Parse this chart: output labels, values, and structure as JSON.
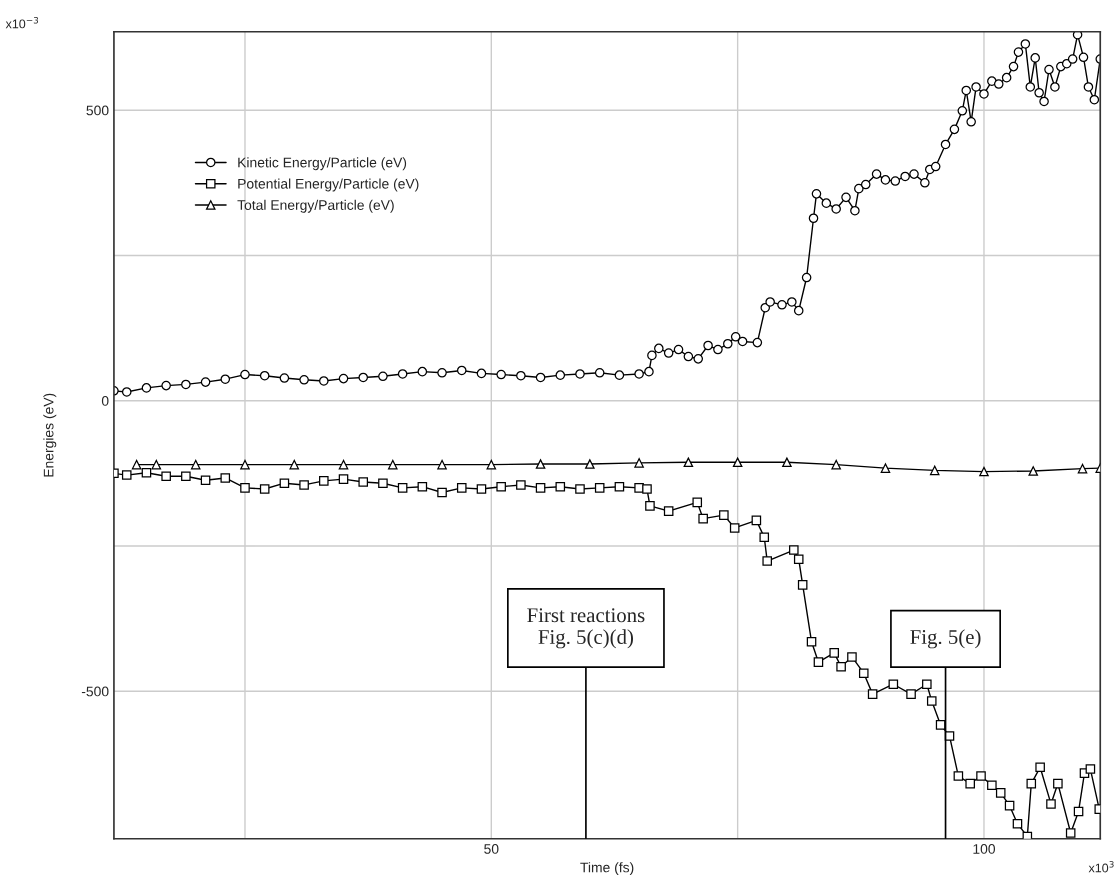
{
  "chart_data": {
    "type": "line",
    "xlabel": "Time (fs)",
    "ylabel": "Energies (eV)",
    "xlim": [
      11.7,
      111.8
    ],
    "xticks": [
      {
        "value": 25,
        "label": null
      },
      50,
      {
        "value": 75,
        "label": null
      },
      100
    ],
    "ylim": [
      -754,
      635
    ],
    "yticks": [
      -500,
      {
        "value": -250,
        "label": null
      },
      0,
      {
        "value": 250,
        "label": null
      },
      500
    ],
    "grid": true,
    "legend": "top left",
    "line_style": "solid",
    "series": [
      {
        "name": "Kinetic Energy/Particle (eV)",
        "color": "#000000",
        "marker": "circle",
        "x": [
          11.7,
          13,
          15,
          17,
          19,
          21,
          23,
          25,
          27,
          29,
          31,
          33,
          35,
          37,
          39,
          41,
          43,
          45,
          47,
          49,
          51,
          53,
          55,
          57,
          59,
          61,
          63,
          65,
          66,
          66.3,
          67,
          68,
          69,
          70,
          71,
          72,
          73,
          74,
          74.8,
          75.5,
          77,
          77.8,
          78.3,
          79.5,
          80.5,
          81.2,
          82,
          82.7,
          83,
          84,
          85,
          86,
          86.9,
          87.3,
          88,
          89.1,
          90,
          91,
          92,
          92.9,
          94,
          94.5,
          95.1,
          96.1,
          97,
          97.8,
          98.2,
          98.7,
          99.2,
          100,
          100.8,
          101.5,
          102.3,
          103,
          103.5,
          104.2,
          104.7,
          105.2,
          105.6,
          106.1,
          106.6,
          107.2,
          107.8,
          108.4,
          109,
          109.5,
          110.1,
          110.6,
          111.2,
          111.8
        ],
        "values": [
          17,
          15,
          22,
          26,
          28,
          32,
          37,
          45,
          43,
          39,
          36,
          34,
          38,
          40,
          42,
          46,
          50,
          48,
          52,
          47,
          45,
          43,
          40,
          44,
          46,
          48,
          44,
          46,
          50,
          78,
          90,
          82,
          88,
          76,
          72,
          95,
          88,
          98,
          110,
          102,
          100,
          160,
          170,
          165,
          170,
          155,
          212,
          314,
          356,
          340,
          330,
          350,
          327,
          365,
          372,
          390,
          380,
          378,
          386,
          390,
          375,
          398,
          403,
          441,
          467,
          499,
          534,
          480,
          540,
          528,
          550,
          545,
          556,
          575,
          600,
          614,
          540,
          590,
          530,
          515,
          570,
          540,
          575,
          580,
          588,
          630,
          591,
          540,
          518,
          588
        ]
      },
      {
        "name": "Potential Energy/Particle (eV)",
        "color": "#000000",
        "marker": "square",
        "x": [
          11.7,
          13,
          15,
          17,
          19,
          21,
          23,
          25,
          27,
          29,
          31,
          33,
          35,
          37,
          39,
          41,
          43,
          45,
          47,
          49,
          51,
          53,
          55,
          57,
          59,
          61,
          63,
          65,
          65.8,
          66.1,
          68,
          70.9,
          71.5,
          73.6,
          74.7,
          76.9,
          77.7,
          78,
          80.7,
          81.2,
          81.6,
          82.5,
          83.2,
          84.8,
          85.5,
          86.6,
          87.8,
          88.7,
          90.8,
          92.6,
          94.2,
          94.7,
          95.6,
          96.5,
          97.4,
          98.6,
          99.7,
          100.8,
          101.7,
          102.6,
          103.4,
          104.4,
          104.8,
          105.7,
          106.8,
          107.5,
          108.8,
          109.6,
          110.2,
          110.8,
          111.7
        ],
        "values": [
          -125,
          -128,
          -124,
          -130,
          -130,
          -137,
          -133,
          -150,
          -152,
          -142,
          -145,
          -138,
          -135,
          -140,
          -142,
          -150,
          -148,
          -158,
          -150,
          -152,
          -148,
          -145,
          -150,
          -148,
          -152,
          -150,
          -148,
          -150,
          -152,
          -181,
          -190,
          -175,
          -203,
          -197,
          -219,
          -206,
          -235,
          -276,
          -257,
          -273,
          -317,
          -415,
          -450,
          -434,
          -458,
          -441,
          -469,
          -505,
          -488,
          -505,
          -488,
          -517,
          -558,
          -577,
          -646,
          -659,
          -646,
          -662,
          -675,
          -697,
          -728,
          -750,
          -659,
          -631,
          -694,
          -659,
          -744,
          -707,
          -641,
          -634,
          -703
        ]
      },
      {
        "name": "Total Energy/Particle (eV)",
        "color": "#000000",
        "marker": "triangle",
        "x": [
          14,
          16,
          20,
          25,
          30,
          35,
          40,
          45,
          50,
          55,
          60,
          65,
          70,
          75,
          80,
          85,
          90,
          95,
          100,
          105,
          110,
          111.8
        ],
        "values": [
          -110,
          -110,
          -110,
          -110,
          -110,
          -110,
          -110,
          -110,
          -110,
          -109,
          -109,
          -107,
          -106,
          -106,
          -106,
          -110,
          -116,
          -120,
          -122,
          -121,
          -117,
          -116
        ]
      }
    ],
    "ref_lines": [
      {
        "axis": "x",
        "value": 59.6,
        "label": "First reactions\nFig. 5(c)(d)",
        "color": "#000000",
        "line_style": "solid"
      },
      {
        "axis": "x",
        "value": 96.1,
        "label": "Fig. 5(e)",
        "color": "#000000",
        "line_style": "solid"
      }
    ],
    "annotations": [
      "x10$^{−3}$",
      "x10$^{3}$"
    ]
  }
}
